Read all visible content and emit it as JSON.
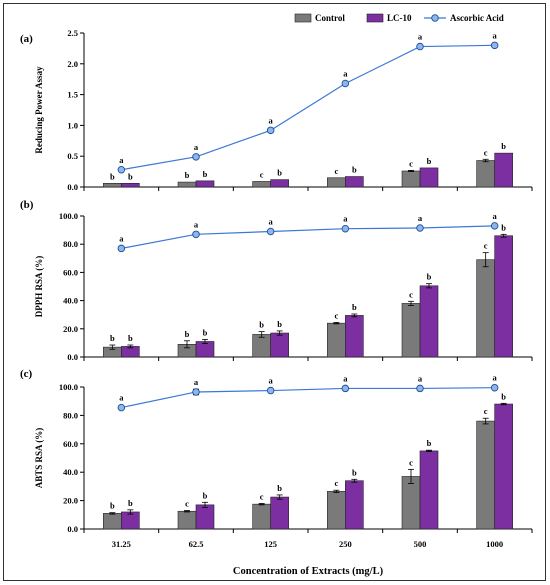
{
  "x_axis_title": "Concentration of Extracts (mg/L)",
  "legend": [
    {
      "name": "Control",
      "marker": "bar",
      "color": "#7a7a7a"
    },
    {
      "name": "LC-10",
      "marker": "bar",
      "color": "#7b2fa0"
    },
    {
      "name": "Ascorbic Acid",
      "marker": "line-circle",
      "color": "#4a86d8"
    }
  ],
  "colors": {
    "control": "#7a7a7a",
    "lc10": "#7b2fa0",
    "line": "#3a78d4",
    "marker": "#8db6ea"
  },
  "chart_data": [
    {
      "type": "bar",
      "panel_label": "(a)",
      "ylabel": "Reducing Power Assay",
      "categories": [
        "31.25",
        "62.5",
        "125",
        "250",
        "500",
        "1000"
      ],
      "ylim": [
        0,
        2.5
      ],
      "yticks": [
        "0.0",
        "0.5",
        "1.0",
        "1.5",
        "2.0",
        "2.5"
      ],
      "ytick_values": [
        0,
        0.5,
        1.0,
        1.5,
        2.0,
        2.5
      ],
      "series": [
        {
          "name": "Control",
          "kind": "bar",
          "values": [
            0.06,
            0.08,
            0.09,
            0.15,
            0.26,
            0.43
          ],
          "errors": [
            0.0,
            0.0,
            0.0,
            0.0,
            0.01,
            0.02
          ],
          "labels": [
            "b",
            "b",
            "c",
            "c",
            "c",
            "c"
          ]
        },
        {
          "name": "LC-10",
          "kind": "bar",
          "values": [
            0.06,
            0.1,
            0.12,
            0.17,
            0.31,
            0.55
          ],
          "errors": [
            0.0,
            0.0,
            0.0,
            0.0,
            0.0,
            0.0
          ],
          "labels": [
            "b",
            "b",
            "b",
            "b",
            "b",
            "b"
          ]
        },
        {
          "name": "Ascorbic Acid",
          "kind": "line",
          "values": [
            0.28,
            0.49,
            0.92,
            1.68,
            2.28,
            2.3
          ],
          "errors": [
            0,
            0,
            0,
            0,
            0,
            0
          ],
          "labels": [
            "a",
            "a",
            "a",
            "a",
            "a",
            "a"
          ]
        }
      ]
    },
    {
      "type": "bar",
      "panel_label": "(b)",
      "ylabel": "DPPH RSA (%)",
      "categories": [
        "31.25",
        "62.5",
        "125",
        "250",
        "500",
        "1000"
      ],
      "ylim": [
        0,
        100
      ],
      "yticks": [
        "0.0",
        "20.0",
        "40.0",
        "60.0",
        "80.0",
        "100.0"
      ],
      "ytick_values": [
        0,
        20,
        40,
        60,
        80,
        100
      ],
      "series": [
        {
          "name": "Control",
          "kind": "bar",
          "values": [
            7,
            9,
            16,
            24,
            38,
            69
          ],
          "errors": [
            1.5,
            2.5,
            2,
            0.5,
            1.5,
            5
          ],
          "labels": [
            "b",
            "b",
            "b",
            "c",
            "c",
            "c"
          ]
        },
        {
          "name": "LC-10",
          "kind": "bar",
          "values": [
            7.5,
            11,
            17,
            29.5,
            50.5,
            86
          ],
          "errors": [
            1,
            1.5,
            1.5,
            1,
            1.5,
            1
          ],
          "labels": [
            "b",
            "b",
            "b",
            "b",
            "b",
            "b"
          ]
        },
        {
          "name": "Ascorbic Acid",
          "kind": "line",
          "values": [
            77,
            87,
            89,
            91,
            91.5,
            93
          ],
          "errors": [
            0.8,
            0.8,
            0.8,
            0.8,
            0.8,
            0.8
          ],
          "labels": [
            "a",
            "a",
            "a",
            "a",
            "a",
            "a"
          ]
        }
      ]
    },
    {
      "type": "bar",
      "panel_label": "(c)",
      "ylabel": "ABTS RSA (%)",
      "categories": [
        "31.25",
        "62.5",
        "125",
        "250",
        "500",
        "1000"
      ],
      "ylim": [
        0,
        100
      ],
      "yticks": [
        "0.0",
        "20.0",
        "40.0",
        "60.0",
        "80.0",
        "100.0"
      ],
      "ytick_values": [
        0,
        20,
        40,
        60,
        80,
        100
      ],
      "series": [
        {
          "name": "Control",
          "kind": "bar",
          "values": [
            11,
            12.5,
            17.5,
            26.5,
            37,
            76
          ],
          "errors": [
            0.5,
            0.5,
            0.5,
            0.8,
            5,
            2
          ],
          "labels": [
            "b",
            "c",
            "c",
            "c",
            "c",
            "c"
          ]
        },
        {
          "name": "LC-10",
          "kind": "bar",
          "values": [
            12,
            17,
            22.5,
            34,
            55,
            88
          ],
          "errors": [
            1.5,
            1.8,
            1.5,
            1,
            0.5,
            0.5
          ],
          "labels": [
            "b",
            "b",
            "b",
            "b",
            "b",
            "b"
          ]
        },
        {
          "name": "Ascorbic Acid",
          "kind": "line",
          "values": [
            85.5,
            96.5,
            97.5,
            99,
            99,
            99.5
          ],
          "errors": [
            0.8,
            2,
            0.8,
            0.8,
            0.8,
            0.8
          ],
          "labels": [
            "a",
            "a",
            "a",
            "a",
            "a",
            "a"
          ]
        }
      ]
    }
  ]
}
